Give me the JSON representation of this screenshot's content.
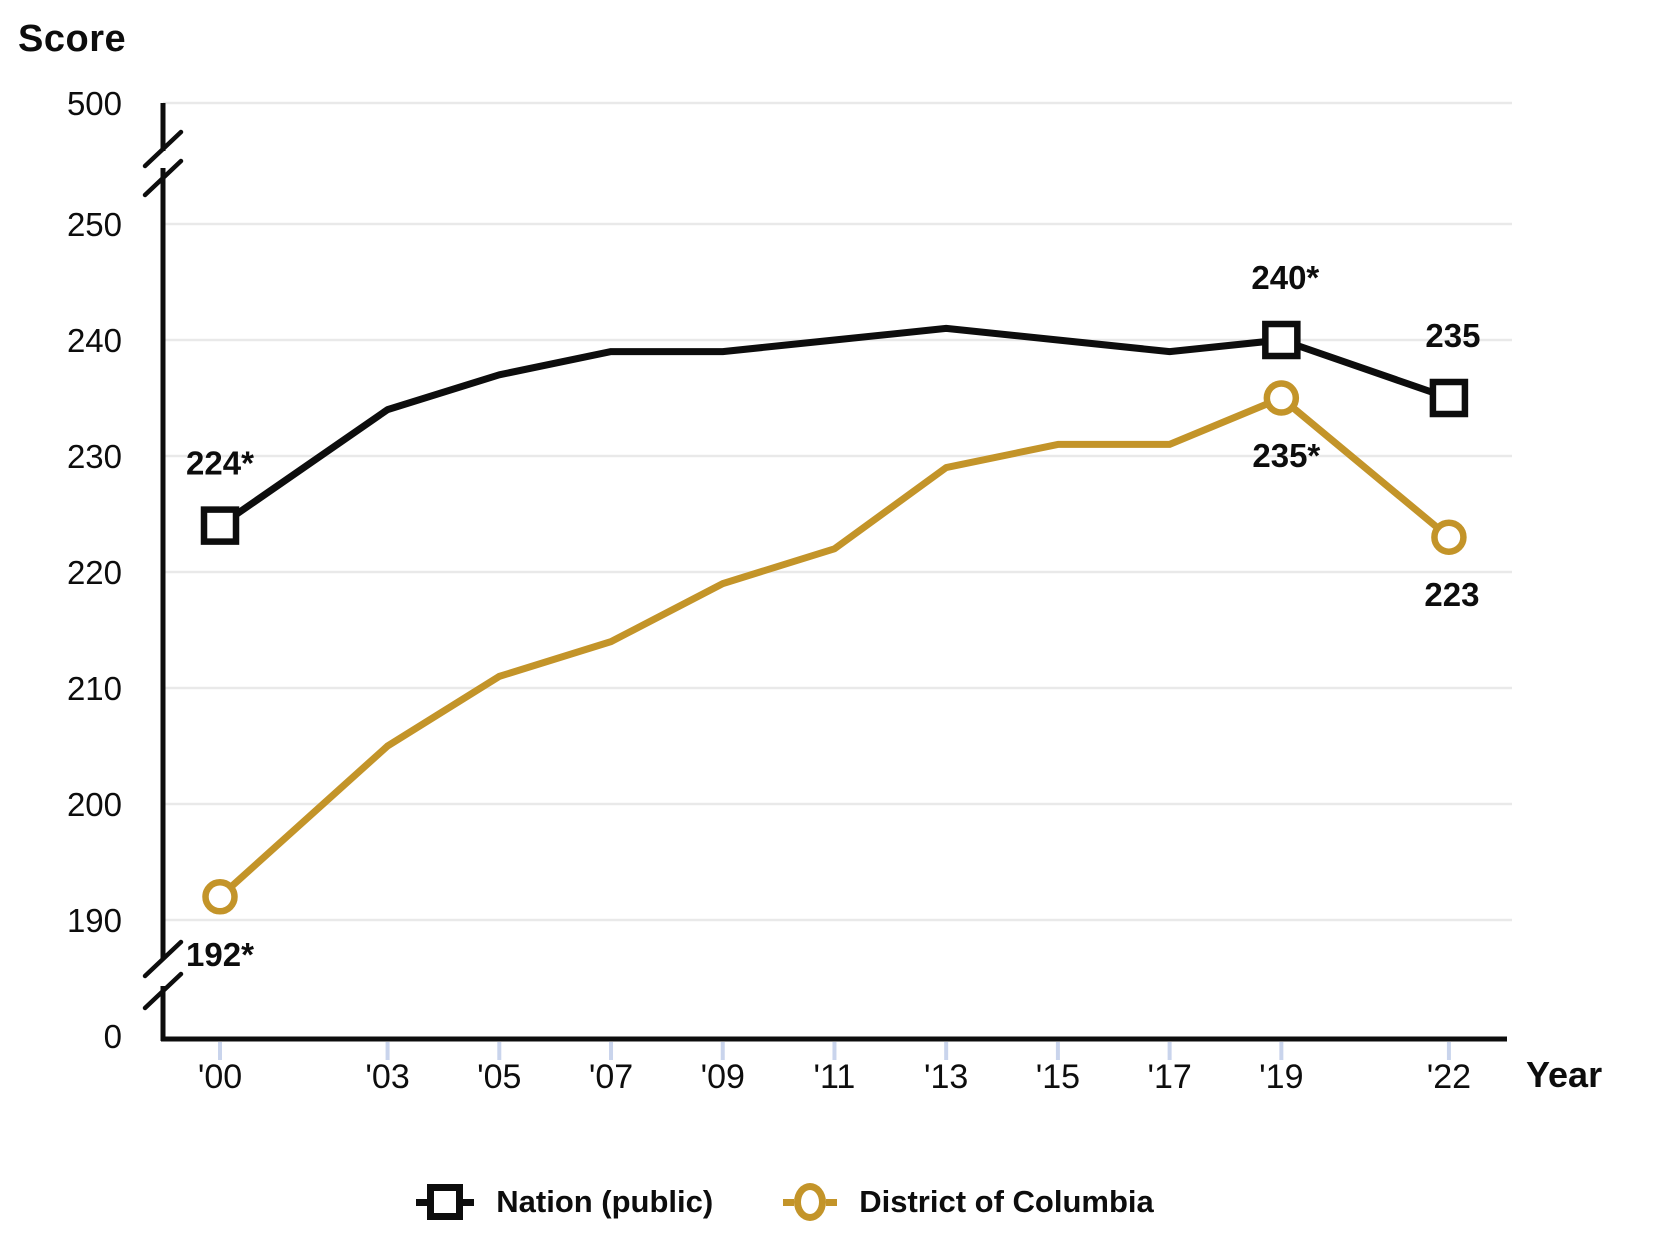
{
  "colors": {
    "background": "#ffffff",
    "axis": "#0d0d0d",
    "gridline": "#e9e9e9",
    "x_tick": "#c9d4ec",
    "text": "#0d0d0d",
    "nation": "#0d0d0d",
    "district": "#C39429"
  },
  "chart_data": {
    "type": "line",
    "title": "",
    "ylabel": "Score",
    "xlabel": "Year",
    "x": [
      2000,
      2003,
      2005,
      2007,
      2009,
      2011,
      2013,
      2015,
      2017,
      2019,
      2022
    ],
    "x_tick_labels": [
      "'00",
      "'03",
      "'05",
      "'07",
      "'09",
      "'11",
      "'13",
      "'15",
      "'17",
      "'19",
      "'22"
    ],
    "y_ticks": [
      "0",
      "190",
      "200",
      "210",
      "220",
      "230",
      "240",
      "250",
      "500"
    ],
    "ylim_shown": [
      190,
      250
    ],
    "y_axis_breaks": [
      "between 0 and 190",
      "between 250 and 500"
    ],
    "grid": "horizontal gridlines on",
    "legend_position": "bottom center",
    "series": [
      {
        "name": "Nation (public)",
        "color": "#0d0d0d",
        "marker": "square",
        "marker_at": [
          2000,
          2019,
          2022
        ],
        "values": [
          224,
          234,
          237,
          239,
          239,
          240,
          241,
          240,
          239,
          240,
          235
        ],
        "point_labels": [
          {
            "x": 2000,
            "text": "224*",
            "placement": "above",
            "dx": 0
          },
          {
            "x": 2019,
            "text": "240*",
            "placement": "above",
            "dx": 4
          },
          {
            "x": 2022,
            "text": "235",
            "placement": "above",
            "dx": 4
          }
        ]
      },
      {
        "name": "District of Columbia",
        "color": "#C39429",
        "marker": "circle",
        "marker_at": [
          2000,
          2019,
          2022
        ],
        "values": [
          192,
          205,
          211,
          214,
          219,
          222,
          229,
          231,
          231,
          235,
          223
        ],
        "point_labels": [
          {
            "x": 2000,
            "text": "192*",
            "placement": "below",
            "dx": 0
          },
          {
            "x": 2019,
            "text": "235*",
            "placement": "below",
            "dx": 5
          },
          {
            "x": 2022,
            "text": "223",
            "placement": "below",
            "dx": 3
          }
        ]
      }
    ],
    "legend": [
      {
        "label": "Nation (public)",
        "marker": "square",
        "color": "#0d0d0d"
      },
      {
        "label": "District of Columbia",
        "marker": "circle",
        "color": "#C39429"
      }
    ]
  }
}
